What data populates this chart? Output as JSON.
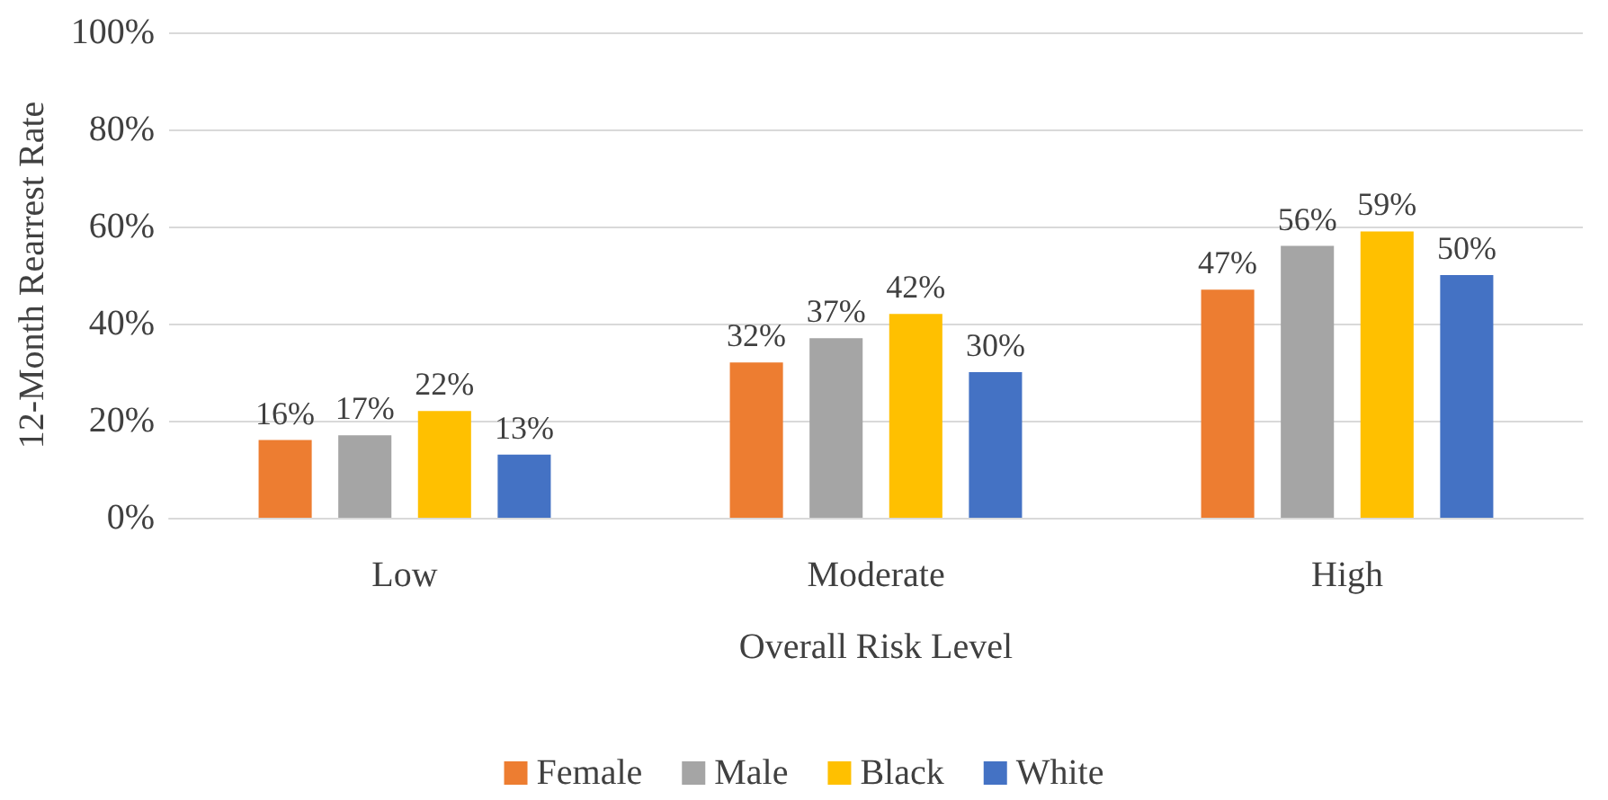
{
  "chart_data": {
    "type": "bar",
    "xlabel": "Overall Risk Level",
    "ylabel": "12-Month Rearrest Rate",
    "categories": [
      "Low",
      "Moderate",
      "High"
    ],
    "series": [
      {
        "name": "Female",
        "color": "#ed7d31",
        "values": [
          16,
          32,
          47
        ],
        "value_labels": [
          "16%",
          "32%",
          "47%"
        ]
      },
      {
        "name": "Male",
        "color": "#a5a5a5",
        "values": [
          17,
          37,
          56
        ],
        "value_labels": [
          "17%",
          "37%",
          "56%"
        ]
      },
      {
        "name": "Black",
        "color": "#ffc000",
        "values": [
          22,
          42,
          59
        ],
        "value_labels": [
          "22%",
          "42%",
          "59%"
        ]
      },
      {
        "name": "White",
        "color": "#4472c4",
        "values": [
          13,
          30,
          50
        ],
        "value_labels": [
          "13%",
          "30%",
          "50%"
        ]
      }
    ],
    "ylim": [
      0,
      100
    ],
    "yticks": [
      {
        "value": 0,
        "label": "0%"
      },
      {
        "value": 20,
        "label": "20%"
      },
      {
        "value": 40,
        "label": "40%"
      },
      {
        "value": 60,
        "label": "60%"
      },
      {
        "value": 80,
        "label": "80%"
      },
      {
        "value": 100,
        "label": "100%"
      }
    ],
    "grid": "y",
    "legend": "bottom"
  }
}
